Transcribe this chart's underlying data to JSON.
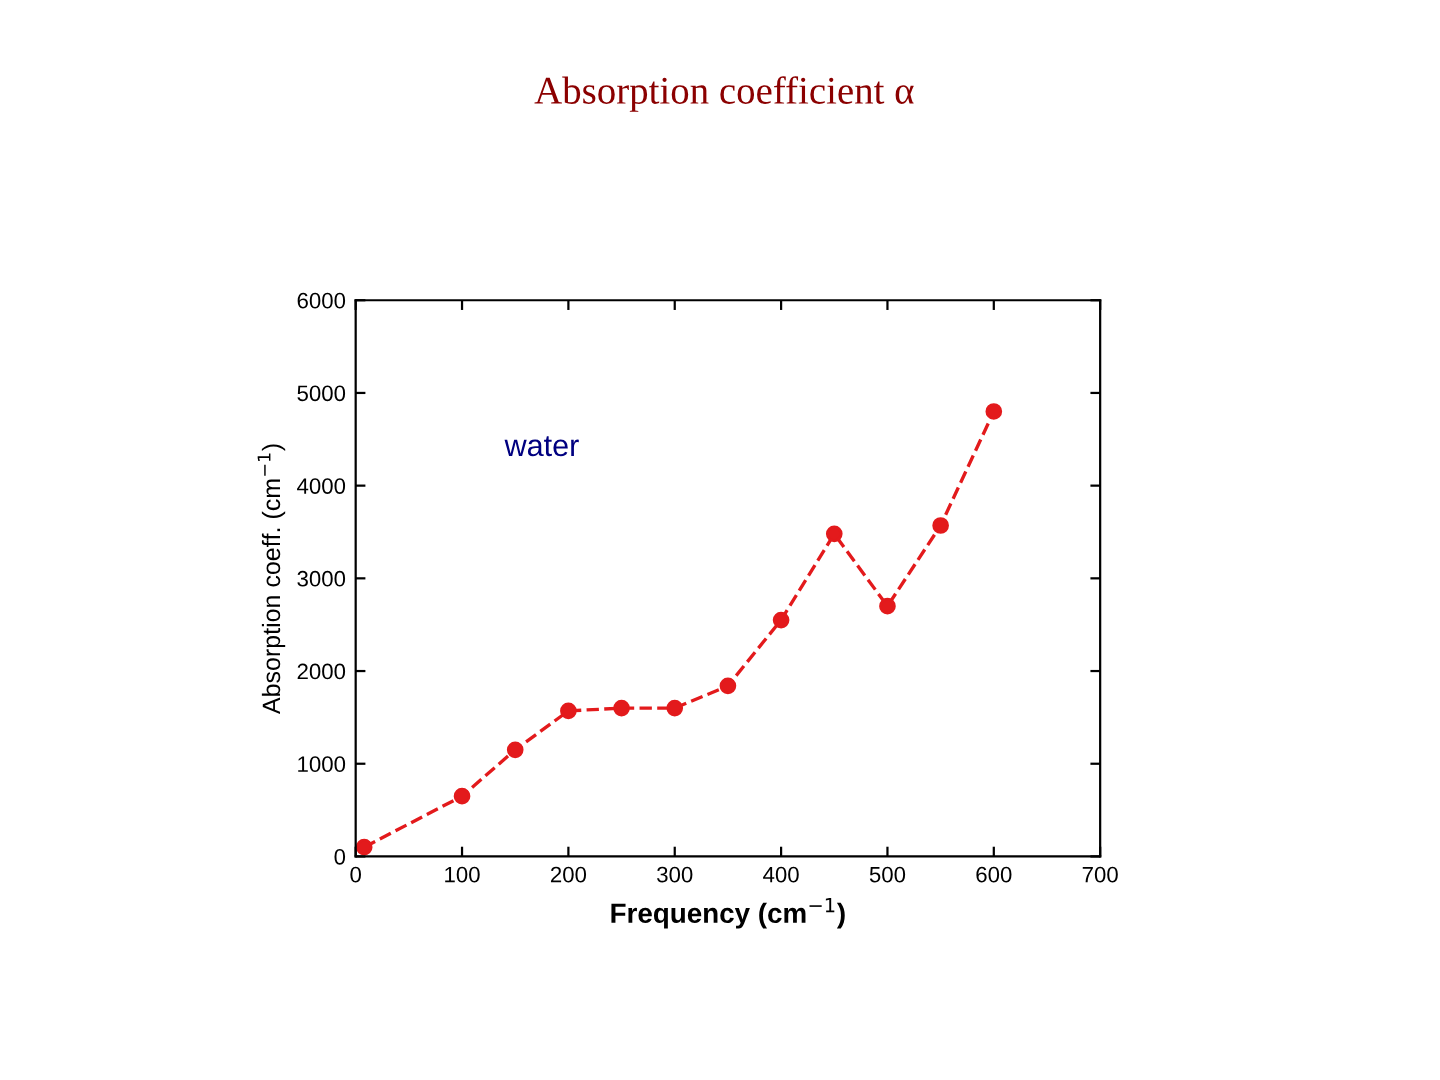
{
  "chart_data": {
    "type": "line",
    "title": "Absorption coefficient α",
    "xlabel": "Frequency (cm$^{−1}$)",
    "ylabel": "Absorption coeff. (cm$^{−1}$)",
    "annotations": [
      "water"
    ],
    "x": [
      8,
      100,
      150,
      200,
      250,
      300,
      350,
      400,
      450,
      500,
      550,
      600
    ],
    "series": [
      {
        "color": "#e31a1c",
        "values": [
          100,
          650,
          1150,
          1570,
          1600,
          1600,
          1840,
          2550,
          3480,
          2700,
          3570,
          4800
        ]
      }
    ],
    "xlim": [
      0,
      700
    ],
    "ylim": [
      0,
      6000
    ],
    "xticks": [
      0,
      100,
      200,
      300,
      400,
      500,
      600,
      700
    ],
    "yticks": [
      0,
      1000,
      2000,
      3000,
      4000,
      5000,
      6000
    ],
    "grid": false,
    "legend": false,
    "marker": "circle",
    "line_style": "dashed"
  }
}
